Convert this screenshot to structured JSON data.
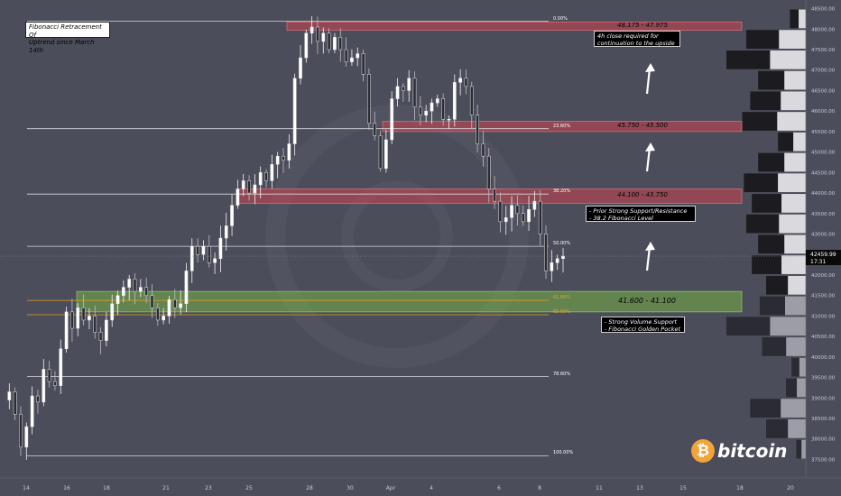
{
  "title_box": {
    "line1": "Fibonacci Retracement Of",
    "line2": "Uptrend since March 14th"
  },
  "notes": {
    "upside": {
      "line1": "4h close required for",
      "line2": "continuation to the upside"
    },
    "prior": {
      "line1": "- Prior Strong Support/Resistance",
      "line2": "- 38.2 Fibonacci Level"
    },
    "volume": {
      "line1": "- Strong Volume Support",
      "line2": "- Fibonacci Golden Pocket"
    }
  },
  "brand": {
    "symbol": "₿",
    "word": "bitcoin"
  },
  "colors": {
    "background": "#4b4d5a",
    "resistance_zone": "#c0404a",
    "support_zone": "#7fb24a",
    "golden_pocket_line": "#e8a020",
    "bitcoin_orange": "#f2a33a",
    "price_tag": "#0a0a0a"
  },
  "chart_data": {
    "type": "candlestick",
    "y_axis": {
      "range": [
        37400,
        48600
      ],
      "ticks": [
        37500,
        38000,
        38500,
        39000,
        39500,
        40000,
        40500,
        41000,
        41500,
        42000,
        42500,
        43000,
        43500,
        44000,
        44500,
        45000,
        45500,
        46000,
        46500,
        47000,
        47500,
        48000,
        48500
      ],
      "tick_labels": [
        "37500.00",
        "38000.00",
        "38500.00",
        "39000.00",
        "39500.00",
        "40000.00",
        "40500.00",
        "41000.00",
        "41500.00",
        "42000.00",
        "42500.00",
        "43000.00",
        "43500.00",
        "44000.00",
        "44500.00",
        "45000.00",
        "45500.00",
        "46000.00",
        "46500.00",
        "47000.00",
        "47500.00",
        "48000.00",
        "48500.00"
      ]
    },
    "x_axis": {
      "tick_labels": [
        "14",
        "16",
        "18",
        "21",
        "23",
        "25",
        "28",
        "30",
        "Apr",
        "4",
        "6",
        "8",
        "11",
        "13",
        "15",
        "18",
        "20"
      ]
    },
    "last_price": {
      "value": "42459.99",
      "time": "17:31",
      "price": 42459.99
    },
    "fib_levels": [
      {
        "label": "0.00%",
        "price": 48190
      },
      {
        "label": "23.60%",
        "price": 45570
      },
      {
        "label": "38.20%",
        "price": 43975
      },
      {
        "label": "50.00%",
        "price": 42700
      },
      {
        "label": "61.80%",
        "price": 41380
      },
      {
        "label": "65.00%",
        "price": 41030
      },
      {
        "label": "78.60%",
        "price": 39520
      },
      {
        "label": "100.00%",
        "price": 37590
      }
    ],
    "zones": [
      {
        "label": "48.175 - 47.975",
        "top": 48175,
        "bottom": 47975,
        "kind": "resistance"
      },
      {
        "label": "45.750 - 45.500",
        "top": 45750,
        "bottom": 45500,
        "kind": "resistance"
      },
      {
        "label": "44.100 - 43.750",
        "top": 44100,
        "bottom": 43750,
        "kind": "resistance"
      },
      {
        "label": "41.600 - 41.100",
        "top": 41600,
        "bottom": 41100,
        "kind": "support"
      }
    ],
    "price_path": [
      38950,
      39150,
      38600,
      37800,
      38300,
      39050,
      38900,
      39700,
      39400,
      39300,
      40200,
      41100,
      40700,
      41200,
      40900,
      41000,
      40600,
      40400,
      40900,
      41300,
      41500,
      41700,
      41900,
      41600,
      41700,
      41500,
      41200,
      40900,
      41000,
      41400,
      41200,
      41300,
      42100,
      42700,
      42500,
      42700,
      42300,
      42400,
      42900,
      43200,
      43700,
      44100,
      44300,
      44000,
      44200,
      44500,
      44300,
      44700,
      44900,
      44800,
      45200,
      46800,
      47300,
      47900,
      48050,
      47700,
      47900,
      47500,
      47800,
      47500,
      47200,
      47300,
      47400,
      46900,
      45700,
      45400,
      44600,
      45300,
      46300,
      46600,
      46500,
      46800,
      46100,
      45900,
      46000,
      46200,
      46300,
      45800,
      45800,
      46700,
      46800,
      46600,
      45900,
      45200,
      44900,
      44100,
      43800,
      43300,
      43400,
      43700,
      43500,
      43300,
      43600,
      43800,
      43000,
      42100,
      42300,
      42400,
      42460
    ],
    "volume_profile": {
      "bins": [
        {
          "price": 48250,
          "value": 0.2
        },
        {
          "price": 47750,
          "value": 0.75
        },
        {
          "price": 47250,
          "value": 1.0
        },
        {
          "price": 46750,
          "value": 0.6
        },
        {
          "price": 46250,
          "value": 0.7
        },
        {
          "price": 45750,
          "value": 0.8
        },
        {
          "price": 45250,
          "value": 0.35
        },
        {
          "price": 44750,
          "value": 0.6
        },
        {
          "price": 44250,
          "value": 0.78
        },
        {
          "price": 43750,
          "value": 0.68
        },
        {
          "price": 43250,
          "value": 0.75
        },
        {
          "price": 42750,
          "value": 0.6
        },
        {
          "price": 42250,
          "value": 0.68
        },
        {
          "price": 41750,
          "value": 0.5
        },
        {
          "price": 41250,
          "value": 0.58
        },
        {
          "price": 40750,
          "value": 1.0
        },
        {
          "price": 40250,
          "value": 0.55
        },
        {
          "price": 39750,
          "value": 0.18
        },
        {
          "price": 39250,
          "value": 0.25
        },
        {
          "price": 38750,
          "value": 0.7
        },
        {
          "price": 38250,
          "value": 0.5
        },
        {
          "price": 37750,
          "value": 0.12
        }
      ]
    }
  }
}
